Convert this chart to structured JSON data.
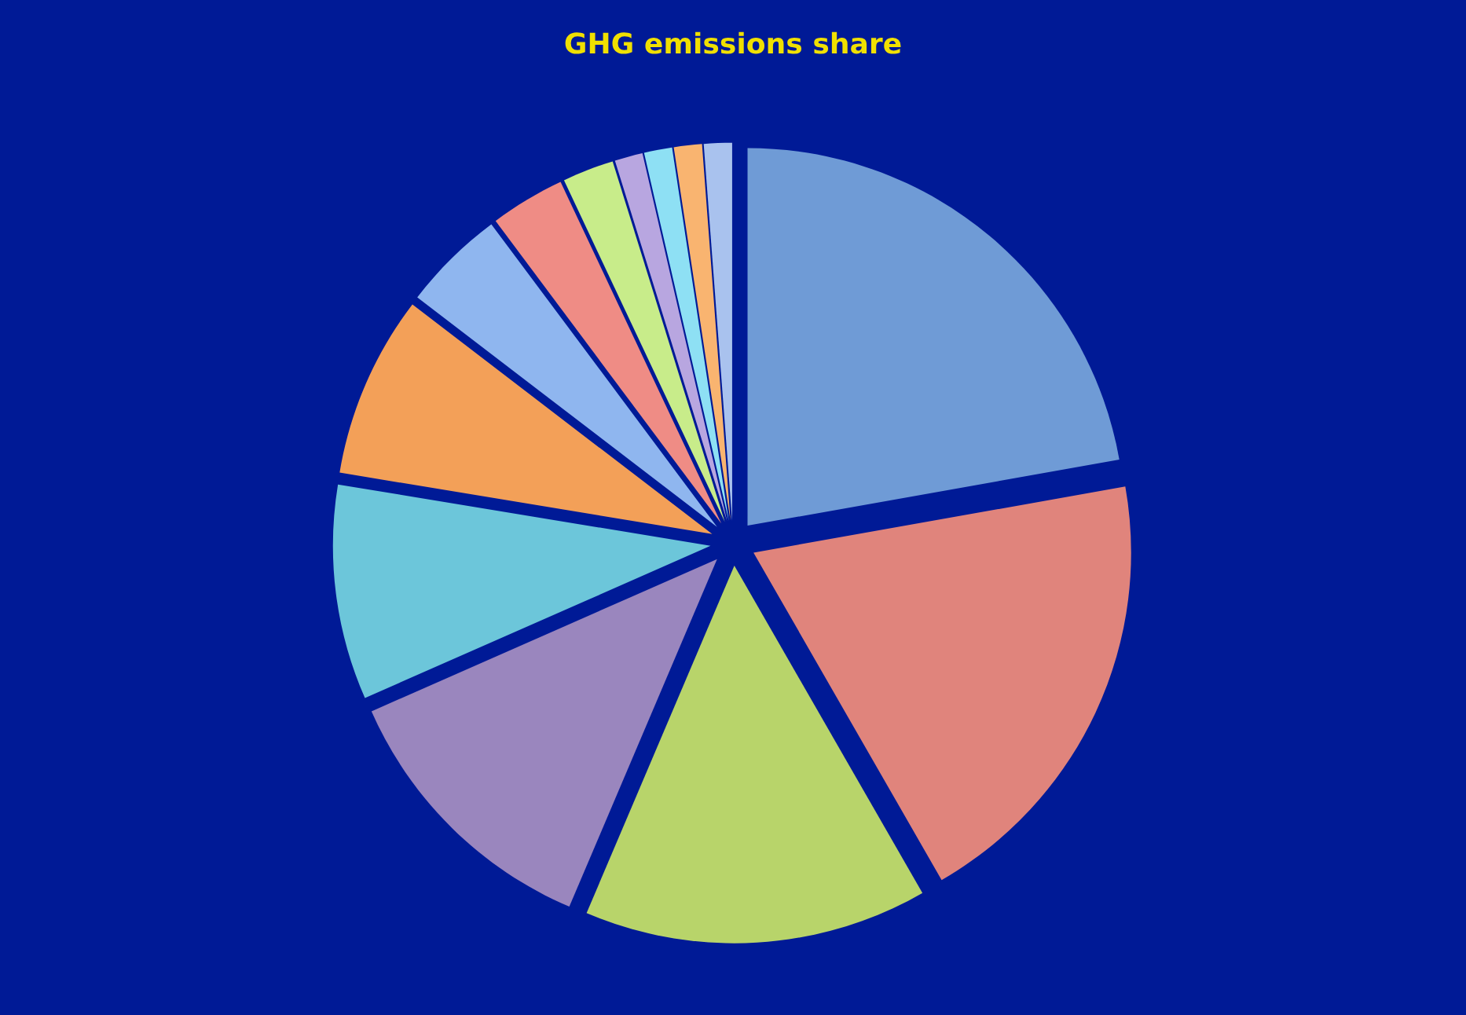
{
  "chart_data": {
    "type": "pie",
    "title": "GHG emissions share",
    "categories": [
      null,
      null,
      null,
      null,
      null,
      null,
      null,
      null,
      null,
      null,
      null,
      null,
      null
    ],
    "values": [
      22.2,
      19.5,
      14.7,
      12,
      9.2,
      7.8,
      4.4,
      3.2,
      2.2,
      1.2,
      1.2,
      1.2,
      1.2
    ],
    "colors": [
      "#6f9bd6",
      "#e0847c",
      "#b8d46a",
      "#9a86be",
      "#6cc6da",
      "#f3a058",
      "#8fb6ef",
      "#ef8c85",
      "#c8ec8a",
      "#b8a6e0",
      "#8ee0f4",
      "#f9b470",
      "#a9c2ee"
    ]
  }
}
